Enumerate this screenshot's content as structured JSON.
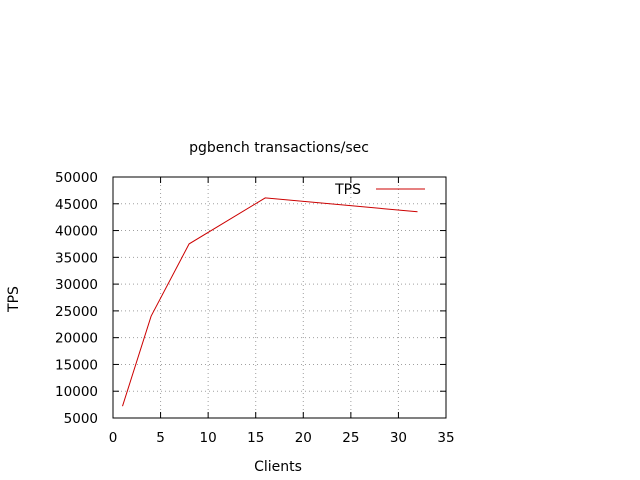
{
  "chart_data": {
    "type": "line",
    "title": "pgbench transactions/sec",
    "xlabel": "Clients",
    "ylabel": "TPS",
    "xlim": [
      0,
      35
    ],
    "ylim": [
      5000,
      50000
    ],
    "xticks": [
      0,
      5,
      10,
      15,
      20,
      25,
      30,
      35
    ],
    "yticks": [
      5000,
      10000,
      15000,
      20000,
      25000,
      30000,
      35000,
      40000,
      45000,
      50000
    ],
    "grid": true,
    "legend_position": "top-right",
    "series": [
      {
        "name": "TPS",
        "color": "#cc0000",
        "x": [
          1,
          4,
          8,
          16,
          32
        ],
        "y": [
          7200,
          24000,
          37500,
          46100,
          43500
        ]
      }
    ]
  }
}
